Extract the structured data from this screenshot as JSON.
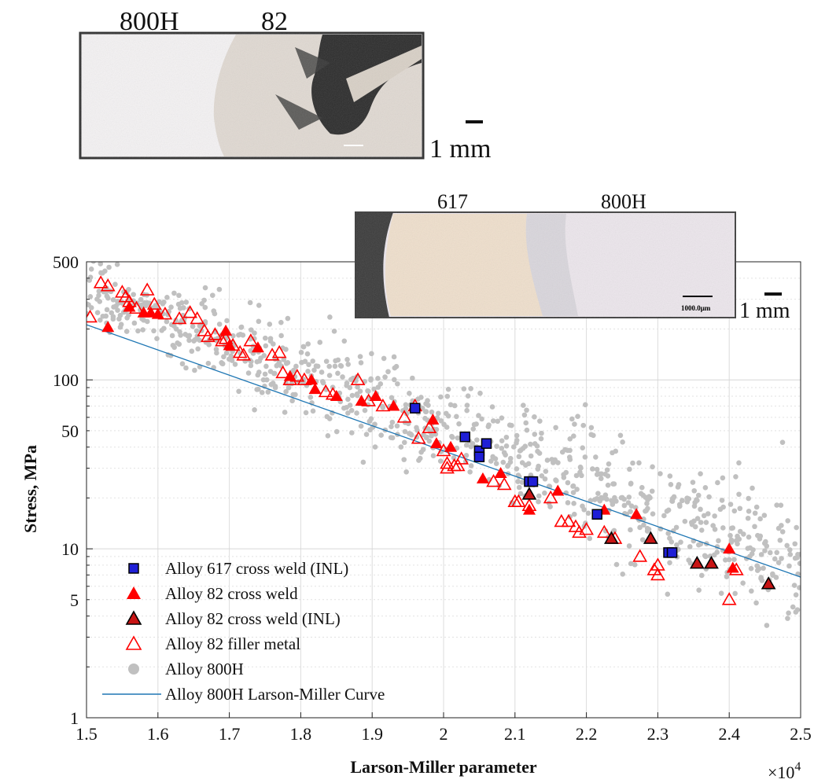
{
  "chart_data": {
    "type": "scatter",
    "xlabel": "Larson-Miller parameter",
    "ylabel": "Stress, MPa",
    "x_multiplier": "×10",
    "x_multiplier_exp": "4",
    "xlim": [
      15000,
      25000
    ],
    "ylim": [
      1,
      500
    ],
    "yscale": "log",
    "grid": true,
    "legend_position": "bottom-left",
    "x_ticks": [
      {
        "value": 15000,
        "label": "1.5"
      },
      {
        "value": 16000,
        "label": "1.6"
      },
      {
        "value": 17000,
        "label": "1.7"
      },
      {
        "value": 18000,
        "label": "1.8"
      },
      {
        "value": 19000,
        "label": "1.9"
      },
      {
        "value": 20000,
        "label": "2"
      },
      {
        "value": 21000,
        "label": "2.1"
      },
      {
        "value": 22000,
        "label": "2.2"
      },
      {
        "value": 23000,
        "label": "2.3"
      },
      {
        "value": 24000,
        "label": "2.4"
      },
      {
        "value": 25000,
        "label": "2.5"
      }
    ],
    "y_ticks": [
      {
        "value": 1,
        "label": "1"
      },
      {
        "value": 5,
        "label": "5"
      },
      {
        "value": 10,
        "label": "10"
      },
      {
        "value": 50,
        "label": "50"
      },
      {
        "value": 100,
        "label": "100"
      },
      {
        "value": 500,
        "label": "500"
      }
    ],
    "series": [
      {
        "name": "Alloy 800H",
        "marker": "circle-filled",
        "color": "#c0c0c0",
        "trend": {
          "x0": 15000,
          "y0": 340,
          "x1": 25000,
          "y1": 8.2,
          "count": 900,
          "spread": 0.14,
          "seed": 7
        }
      },
      {
        "name": "Alloy 617 cross weld (INL)",
        "marker": "square-filled",
        "color": "#1f1fd6",
        "edge": "#000000",
        "x": [
          19600,
          20300,
          20500,
          20500,
          20600,
          21200,
          21250,
          22150,
          23150,
          23200
        ],
        "y": [
          68,
          46,
          38,
          35,
          42,
          25,
          25,
          16,
          9.5,
          9.5
        ]
      },
      {
        "name": "Alloy 82 cross weld",
        "marker": "triangle-filled",
        "color": "#ff0000",
        "x": [
          15300,
          15600,
          15800,
          15900,
          16000,
          16950,
          17000,
          17400,
          17850,
          18150,
          18200,
          18500,
          18850,
          19050,
          19300,
          19850,
          19900,
          20100,
          20800,
          20550,
          21200,
          21600,
          22250,
          22700,
          24000,
          24050
        ],
        "y": [
          205,
          270,
          250,
          250,
          245,
          195,
          160,
          155,
          105,
          100,
          88,
          80,
          75,
          80,
          70,
          58,
          42,
          40,
          28,
          26,
          17,
          22,
          17,
          16,
          10,
          7.7
        ]
      },
      {
        "name": "Alloy 82 cross weld (INL)",
        "marker": "triangle-filled-edge",
        "color": "#c81414",
        "edge": "#000000",
        "x": [
          21200,
          22350,
          22900,
          23550,
          23750,
          24550
        ],
        "y": [
          21,
          11.5,
          11.5,
          8.2,
          8.2,
          6.2
        ]
      },
      {
        "name": "Alloy 82 filler metal",
        "marker": "triangle-open",
        "color": "#ff0000",
        "x": [
          15050,
          15200,
          15300,
          15500,
          15550,
          15600,
          15700,
          15850,
          15950,
          16100,
          16300,
          16450,
          16550,
          16650,
          16700,
          16800,
          16900,
          16950,
          17050,
          17150,
          17200,
          17300,
          17600,
          17700,
          17750,
          17850,
          17950,
          18050,
          18350,
          18450,
          18800,
          18950,
          19150,
          19450,
          19600,
          19650,
          19800,
          20000,
          20050,
          20150,
          20200,
          20250,
          20050,
          20700,
          20850,
          21000,
          21050,
          21200,
          21500,
          21650,
          21750,
          21850,
          21900,
          22000,
          22250,
          22400,
          22750,
          22950,
          23000,
          24000,
          24100,
          23000
        ],
        "y": [
          235,
          375,
          360,
          330,
          310,
          290,
          265,
          340,
          280,
          245,
          230,
          250,
          230,
          195,
          180,
          185,
          170,
          175,
          160,
          145,
          140,
          170,
          140,
          145,
          110,
          100,
          105,
          100,
          85,
          82,
          100,
          75,
          70,
          60,
          70,
          45,
          52,
          38,
          32,
          31,
          31,
          34,
          30,
          25,
          24,
          19,
          19,
          18,
          20,
          14.5,
          14.5,
          13.5,
          12.5,
          13,
          12.5,
          11.5,
          9,
          7.5,
          8,
          5,
          7.5,
          7
        ]
      },
      {
        "name": "Alloy 800H Larson-Miller Curve",
        "marker": "line",
        "color": "#1f77b4",
        "x": [
          15000,
          25000
        ],
        "y": [
          212,
          6.8
        ]
      }
    ]
  },
  "insets": [
    {
      "labels": [
        "800H",
        "82"
      ],
      "scale_label": "1 mm"
    },
    {
      "labels": [
        "617",
        "800H"
      ],
      "scale_label": "1 mm",
      "scale_bar_text": "1000.0µm"
    }
  ]
}
